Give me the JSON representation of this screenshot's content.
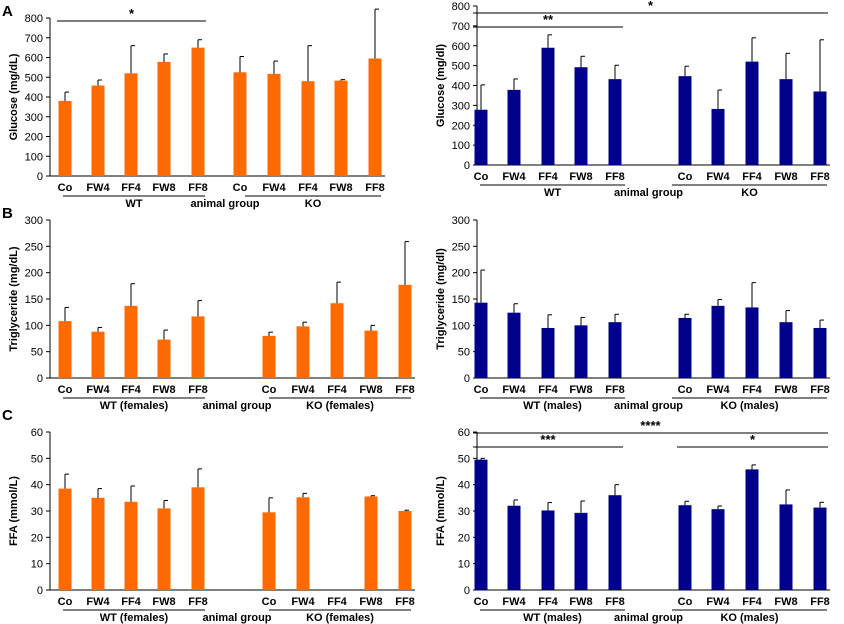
{
  "panel_letters": [
    "A",
    "B",
    "C"
  ],
  "colors": {
    "orange": "#FF6A00",
    "blue": "#00008B"
  },
  "chart_data": [
    {
      "id": "A-left",
      "type": "bar",
      "color": "orange",
      "ylabel": "Glucose (mg/dL)",
      "xlabel": "animal group",
      "ylim": [
        0,
        800
      ],
      "ytick_labels": [
        "0",
        "100",
        "200",
        "300",
        "400",
        "500",
        "600",
        "700",
        "800"
      ],
      "categories": [
        "Co",
        "FW4",
        "FF4",
        "FW8",
        "FF8",
        "Co",
        "FW4",
        "FF4",
        "FW8",
        "FF8"
      ],
      "values": [
        380,
        458,
        520,
        578,
        650,
        525,
        517,
        480,
        483,
        595
      ],
      "errors": [
        45,
        28,
        140,
        40,
        40,
        80,
        65,
        180,
        5,
        250
      ],
      "groups": [
        {
          "label": "WT"
        },
        {
          "label": "KO"
        }
      ],
      "significance": [
        {
          "label": "*",
          "from": 0,
          "to": 4
        }
      ]
    },
    {
      "id": "A-right",
      "type": "bar",
      "color": "blue",
      "ylabel": "Glucose (mg/dl)",
      "xlabel": "animal group",
      "ylim": [
        0,
        800
      ],
      "ytick_labels": [
        "0",
        "100",
        "200",
        "300",
        "400",
        "500",
        "600",
        "700",
        "800"
      ],
      "categories": [
        "Co",
        "FW4",
        "FF4",
        "FW8",
        "FF8",
        "Co",
        "FW4",
        "FF4",
        "FW8",
        "FF8"
      ],
      "values": [
        278,
        378,
        590,
        492,
        432,
        447,
        282,
        520,
        432,
        370
      ],
      "errors": [
        125,
        55,
        65,
        55,
        70,
        50,
        95,
        120,
        130,
        260
      ],
      "groups": [
        {
          "label": "WT"
        },
        {
          "label": "KO"
        }
      ],
      "significance": [
        {
          "label": "**",
          "from": 0,
          "to": 4
        },
        {
          "label": "*",
          "from": 0,
          "to": 9
        }
      ]
    },
    {
      "id": "B-left",
      "type": "bar",
      "color": "orange",
      "ylabel": "Triglyceride (mg/dL)",
      "xlabel": "animal group",
      "ylim": [
        0,
        300
      ],
      "ytick_labels": [
        "0",
        "50",
        "100",
        "150",
        "200",
        "250",
        "300"
      ],
      "categories": [
        "Co",
        "FW4",
        "FF4",
        "FW8",
        "FF8",
        "Co",
        "FW4",
        "FF4",
        "FW8",
        "FF8"
      ],
      "values": [
        108,
        88,
        137,
        73,
        117,
        80,
        98,
        142,
        90,
        177
      ],
      "errors": [
        26,
        8,
        42,
        18,
        30,
        7,
        8,
        40,
        10,
        82
      ],
      "groups": [
        {
          "label": "WT (females)"
        },
        {
          "label": "KO (females)"
        }
      ],
      "significance": []
    },
    {
      "id": "B-right",
      "type": "bar",
      "color": "blue",
      "ylabel": "Triglyceride (mg/dl)",
      "xlabel": "animal group",
      "ylim": [
        0,
        300
      ],
      "ytick_labels": [
        "0",
        "50",
        "100",
        "150",
        "200",
        "250",
        "300"
      ],
      "categories": [
        "Co",
        "FW4",
        "FF4",
        "FW8",
        "FF8",
        "Co",
        "FW4",
        "FF4",
        "FW8",
        "FF8"
      ],
      "values": [
        143,
        124,
        95,
        100,
        106,
        114,
        137,
        134,
        106,
        95
      ],
      "errors": [
        62,
        17,
        25,
        15,
        15,
        7,
        12,
        47,
        22,
        15
      ],
      "groups": [
        {
          "label": "WT (males)"
        },
        {
          "label": "KO (males)"
        }
      ],
      "significance": []
    },
    {
      "id": "C-left",
      "type": "bar",
      "color": "orange",
      "ylabel": "FFA (mmol/L)",
      "xlabel": "animal group",
      "ylim": [
        0,
        60
      ],
      "ytick_labels": [
        "0",
        "10",
        "20",
        "30",
        "40",
        "50",
        "60"
      ],
      "categories": [
        "Co",
        "FW4",
        "FF4",
        "FW8",
        "FF8",
        "Co",
        "FW4",
        "FF4",
        "FW8",
        "FF8"
      ],
      "values": [
        38.5,
        35,
        33.5,
        31,
        39,
        29.5,
        35.2,
        null,
        35.5,
        30
      ],
      "errors": [
        5.5,
        3.5,
        6,
        3,
        7,
        5.5,
        1.5,
        null,
        0.3,
        0.3
      ],
      "groups": [
        {
          "label": "WT (females)"
        },
        {
          "label": "KO (females)"
        }
      ],
      "significance": []
    },
    {
      "id": "C-right",
      "type": "bar",
      "color": "blue",
      "ylabel": "FFA (mmol/L)",
      "xlabel": "animal group",
      "ylim": [
        0,
        60
      ],
      "ytick_labels": [
        "0",
        "10",
        "20",
        "30",
        "40",
        "50",
        "60"
      ],
      "categories": [
        "Co",
        "FW4",
        "FF4",
        "FW8",
        "FF8",
        "Co",
        "FW4",
        "FF4",
        "FW8",
        "FF8"
      ],
      "values": [
        49.5,
        32,
        30.2,
        29.3,
        36,
        32.2,
        30.7,
        45.8,
        32.5,
        31.3
      ],
      "errors": [
        0.5,
        2.2,
        3,
        4.5,
        4,
        1.5,
        1.2,
        1.7,
        5.5,
        2
      ],
      "groups": [
        {
          "label": "WT (males)"
        },
        {
          "label": "KO (males)"
        }
      ],
      "significance": [
        {
          "label": "***",
          "from": 0,
          "to": 4
        },
        {
          "label": "****",
          "from": 0,
          "to": 9
        },
        {
          "label": "*",
          "from": 5,
          "to": 9
        }
      ]
    }
  ]
}
